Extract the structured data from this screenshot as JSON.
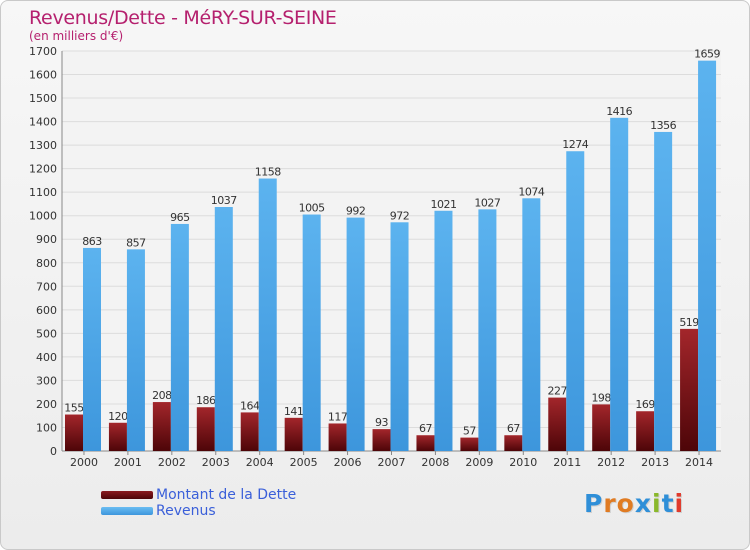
{
  "chart_data": {
    "type": "bar",
    "title": "Revenus/Dette - MéRY-SUR-SEINE",
    "subtitle": "(en milliers d'€)",
    "xlabel": "",
    "ylabel": "",
    "ylim": [
      0,
      1700
    ],
    "yticks": [
      0,
      100,
      200,
      300,
      400,
      500,
      600,
      700,
      800,
      900,
      1000,
      1100,
      1200,
      1300,
      1400,
      1500,
      1600,
      1700
    ],
    "categories": [
      "2000",
      "2001",
      "2002",
      "2003",
      "2004",
      "2005",
      "2006",
      "2007",
      "2008",
      "2009",
      "2010",
      "2011",
      "2012",
      "2013",
      "2014"
    ],
    "series": [
      {
        "name": "Montant de la Dette",
        "color": "#6b0f12",
        "values": [
          155,
          120,
          208,
          186,
          164,
          141,
          117,
          93,
          67,
          57,
          67,
          227,
          198,
          169,
          519
        ]
      },
      {
        "name": "Revenus",
        "color": "#4ba6e8",
        "values": [
          863,
          857,
          965,
          1037,
          1158,
          1005,
          992,
          972,
          1021,
          1027,
          1074,
          1274,
          1416,
          1356,
          1659
        ]
      }
    ],
    "legend": "bottom-left"
  },
  "logo": {
    "letters": [
      "P",
      "r",
      "o",
      "x",
      "i",
      "t",
      "i"
    ],
    "colors": [
      "#2f8fd8",
      "#e07b22",
      "#e07b22",
      "#2f8fd8",
      "#8ab82b",
      "#2f8fd8",
      "#e03a2c"
    ]
  }
}
